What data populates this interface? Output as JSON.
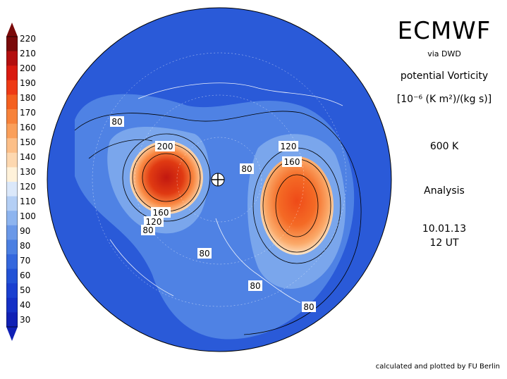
{
  "header": {
    "title": "ECMWF",
    "source": "via DWD",
    "variable": "potential Vorticity",
    "units": "[10⁻⁶ (K m²)/(kg s)]",
    "level": "600 K",
    "kind": "Analysis",
    "date": "10.01.13",
    "time": "12 UT"
  },
  "footer": {
    "credit": "calculated and plotted by FU Berlin"
  },
  "colorbar": {
    "labels": [
      "220",
      "210",
      "200",
      "190",
      "180",
      "170",
      "160",
      "150",
      "140",
      "130",
      "120",
      "110",
      "100",
      "90",
      "80",
      "70",
      "60",
      "50",
      "40",
      "30"
    ],
    "colors": [
      "#7a0a0a",
      "#b30f0f",
      "#d91a10",
      "#ee3a15",
      "#f4601f",
      "#f7823a",
      "#fa9f5a",
      "#fcbf88",
      "#fdd8b0",
      "#fff2da",
      "#dbe8fa",
      "#b4cff5",
      "#8db4ef",
      "#6a98e8",
      "#4b7fe2",
      "#3467dd",
      "#2252d6",
      "#1a3fd0",
      "#1430c6",
      "#1020b5"
    ]
  },
  "map": {
    "projection": "north polar stereographic",
    "contour_labels": [
      "80",
      "200",
      "160",
      "120",
      "80",
      "120",
      "160",
      "80",
      "80",
      "80",
      "80"
    ],
    "colors": {
      "background": "#2a5ad8",
      "mid": "#4f82e4",
      "light": "#8fb8ef",
      "vortex_core": "#e03010"
    }
  }
}
